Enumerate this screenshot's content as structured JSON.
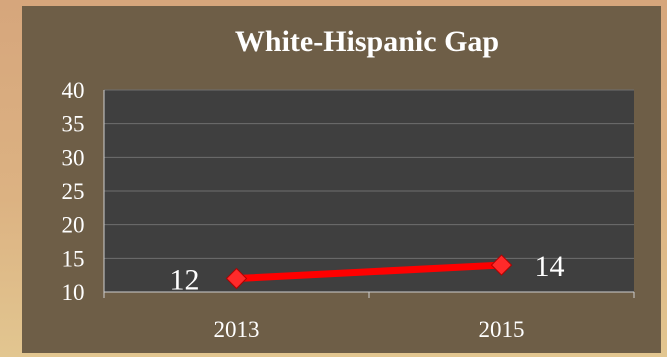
{
  "chart_data": {
    "type": "line",
    "title": "White-Hispanic Gap",
    "xlabel": "",
    "ylabel": "",
    "categories": [
      "2013",
      "2015"
    ],
    "series": [
      {
        "values": [
          12,
          14
        ],
        "data_labels": [
          "12",
          "14"
        ],
        "color": "#ff0000"
      }
    ],
    "ylim": [
      10,
      40
    ],
    "y_ticks": [
      "10",
      "15",
      "20",
      "25",
      "30",
      "35",
      "40"
    ],
    "grid": true,
    "legend": "none",
    "colors": {
      "panel_background": "#6e5e47",
      "plot_background": "#3f3f3f",
      "gridline": "#6f6f6f",
      "axis": "#cfcfcf",
      "marker": "#ff2a2a"
    }
  }
}
